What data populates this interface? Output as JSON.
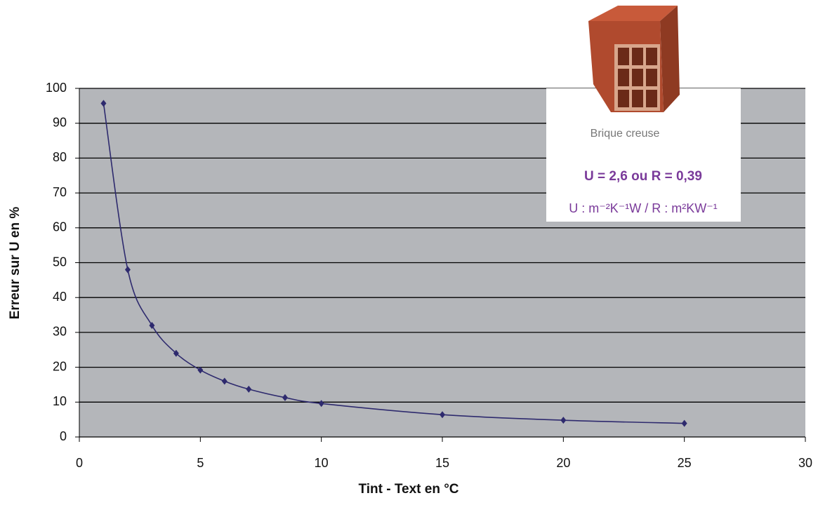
{
  "chart_data": {
    "type": "line",
    "xlabel": "Tint - Text en °C",
    "ylabel": "Erreur sur U en %",
    "x": [
      1,
      2,
      3,
      4,
      5,
      6,
      7,
      8.5,
      10,
      15,
      20,
      25
    ],
    "series": [
      {
        "name": "Brique creuse",
        "color": "#2e2a6e",
        "values": [
          95.7,
          48,
          32,
          24,
          19.2,
          16,
          13.7,
          11.3,
          9.6,
          6.4,
          4.8,
          3.9
        ]
      }
    ],
    "xlim": [
      0,
      30
    ],
    "xticks": [
      0,
      5,
      10,
      15,
      20,
      25,
      30
    ],
    "ylim": [
      0,
      100
    ],
    "yticks": [
      0,
      10,
      20,
      30,
      40,
      50,
      60,
      70,
      80,
      90,
      100
    ],
    "grid": true,
    "annotations": {
      "caption": "Brique creuse",
      "formula": "U = 2,6 ou R = 0,39",
      "units": "U : m⁻²K⁻¹W / R : m²KW⁻¹"
    }
  }
}
